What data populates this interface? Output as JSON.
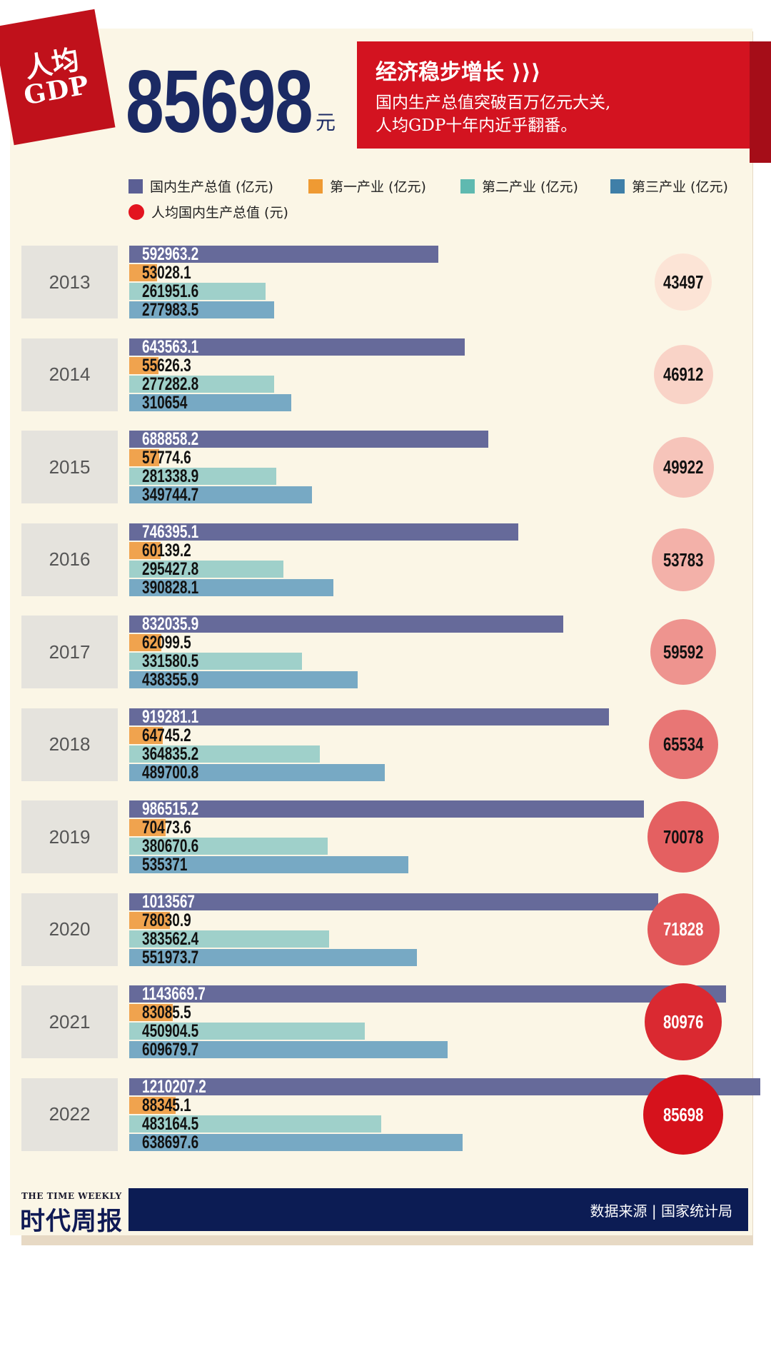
{
  "header": {
    "tag_line1": "人均",
    "tag_line2": "GDP",
    "value": "85698",
    "unit": "元",
    "banner_title": "经济稳步增长 ⟩⟩⟩",
    "banner_line1": "国内生产总值突破百万亿元大关,",
    "banner_line2": "人均GDP十年内近乎翻番。"
  },
  "colors": {
    "gdp": "#666a9a",
    "primary": "#f0a34e",
    "secondary": "#9fd0ca",
    "tertiary": "#77a9c4",
    "accent_red": "#d31320",
    "navy": "#0c1c54"
  },
  "legend": [
    {
      "label": "国内生产总值 (亿元)",
      "color": "#5b5f94",
      "shape": "square"
    },
    {
      "label": "第一产业 (亿元)",
      "color": "#ef9a33",
      "shape": "square"
    },
    {
      "label": "第二产业 (亿元)",
      "color": "#5fb9b0",
      "shape": "square"
    },
    {
      "label": "第三产业 (亿元)",
      "color": "#3f7fa8",
      "shape": "square"
    },
    {
      "label": "人均国内生产总值 (元)",
      "color": "#e3141f",
      "shape": "circle"
    }
  ],
  "chart_data": {
    "type": "bar",
    "orientation": "horizontal",
    "categories": [
      "2013",
      "2014",
      "2015",
      "2016",
      "2017",
      "2018",
      "2019",
      "2020",
      "2021",
      "2022"
    ],
    "series": [
      {
        "name": "国内生产总值 (亿元)",
        "values": [
          "592963.2",
          "643563.1",
          "688858.2",
          "746395.1",
          "832035.9",
          "919281.1",
          "986515.2",
          "1013567",
          "1143669.7",
          "1210207.2"
        ]
      },
      {
        "name": "第一产业 (亿元)",
        "values": [
          "53028.1",
          "55626.3",
          "57774.6",
          "60139.2",
          "62099.5",
          "64745.2",
          "70473.6",
          "78030.9",
          "83085.5",
          "88345.1"
        ]
      },
      {
        "name": "第二产业 (亿元)",
        "values": [
          "261951.6",
          "277282.8",
          "281338.9",
          "295427.8",
          "331580.5",
          "364835.2",
          "380670.6",
          "383562.4",
          "450904.5",
          "483164.5"
        ]
      },
      {
        "name": "第三产业 (亿元)",
        "values": [
          "277983.5",
          "310654",
          "349744.7",
          "390828.1",
          "438355.9",
          "489700.8",
          "535371",
          "551973.7",
          "609679.7",
          "638697.6"
        ]
      }
    ],
    "per_capita": {
      "name": "人均国内生产总值 (元)",
      "values": [
        "43497",
        "46912",
        "49922",
        "53783",
        "59592",
        "65534",
        "70078",
        "71828",
        "80976",
        "85698"
      ]
    },
    "xlim": [
      0,
      1300000
    ]
  },
  "footer": {
    "logo_en": "THE TIME WEEKLY",
    "logo_cn": "时代周报",
    "source": "数据来源  |  国家统计局"
  }
}
